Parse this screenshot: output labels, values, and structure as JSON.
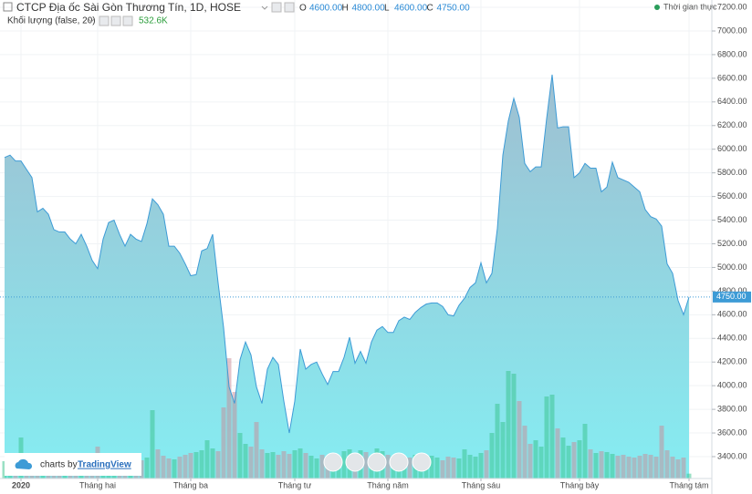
{
  "chart_data": {
    "type": "area",
    "title": "CTCP Địa ốc Sài Gòn Thương Tín, 1D, HOSE",
    "ohlc": [
      {
        "key": "O",
        "value": 4600,
        "label": "4600.00"
      },
      {
        "key": "H",
        "value": 4800,
        "label": "4800.00"
      },
      {
        "key": "L",
        "value": 4600,
        "label": "4600.00"
      },
      {
        "key": "C",
        "value": 4750,
        "label": "4750.00"
      }
    ],
    "realtime": "Thời gian thực",
    "categories": [
      null,
      null,
      null,
      "2020",
      null,
      null,
      null,
      null,
      null,
      null,
      null,
      null,
      null,
      null,
      null,
      null,
      null,
      "Tháng hai",
      null,
      null,
      null,
      null,
      null,
      null,
      null,
      null,
      null,
      null,
      null,
      null,
      null,
      null,
      null,
      null,
      "Tháng ba",
      null,
      null,
      null,
      null,
      null,
      null,
      null,
      null,
      null,
      null,
      null,
      null,
      null,
      null,
      null,
      null,
      null,
      null,
      "Tháng tư",
      null,
      null,
      null,
      null,
      null,
      null,
      null,
      null,
      null,
      null,
      null,
      null,
      null,
      null,
      null,
      null,
      "Tháng năm",
      null,
      null,
      null,
      null,
      null,
      null,
      null,
      null,
      null,
      null,
      null,
      null,
      null,
      null,
      null,
      null,
      "Tháng sáu",
      null,
      null,
      null,
      null,
      null,
      null,
      null,
      null,
      null,
      null,
      null,
      null,
      null,
      null,
      null,
      null,
      null,
      "Tháng bảy",
      null,
      null,
      null,
      null,
      null,
      null,
      null,
      null,
      null,
      null,
      null,
      null,
      null,
      null,
      null,
      null,
      null,
      null,
      null,
      "Tháng tám"
    ],
    "values": [
      5930,
      5950,
      5900,
      5900,
      5830,
      5760,
      5470,
      5500,
      5450,
      5320,
      5300,
      5300,
      5240,
      5200,
      5280,
      5180,
      5060,
      4990,
      5240,
      5380,
      5400,
      5280,
      5180,
      5280,
      5240,
      5220,
      5370,
      5580,
      5530,
      5450,
      5180,
      5180,
      5120,
      5030,
      4930,
      4940,
      5140,
      5160,
      5280,
      4870,
      4490,
      3990,
      3850,
      4220,
      4370,
      4260,
      3990,
      3850,
      4140,
      4240,
      4180,
      3870,
      3600,
      3870,
      4310,
      4140,
      4180,
      4200,
      4100,
      4010,
      4120,
      4120,
      4240,
      4410,
      4190,
      4290,
      4190,
      4370,
      4470,
      4500,
      4450,
      4450,
      4550,
      4580,
      4560,
      4620,
      4660,
      4690,
      4700,
      4700,
      4670,
      4600,
      4590,
      4680,
      4740,
      4830,
      4870,
      5040,
      4870,
      4950,
      5330,
      5950,
      6240,
      6430,
      6270,
      5880,
      5810,
      5850,
      5850,
      6260,
      6630,
      6180,
      6190,
      6190,
      5760,
      5800,
      5880,
      5840,
      5840,
      5640,
      5680,
      5890,
      5760,
      5740,
      5720,
      5680,
      5640,
      5490,
      5430,
      5410,
      5350,
      5030,
      4950,
      4720,
      4600,
      4750
    ],
    "color": "#3d9bd6",
    "fill_colors": [
      "#9fbfd1",
      "#85edf2"
    ],
    "ylim": [
      3215,
      7262
    ],
    "yticks": [
      {
        "value": 3400,
        "label": "3400.00"
      },
      {
        "value": 3600,
        "label": "3600.00"
      },
      {
        "value": 3800,
        "label": "3800.00"
      },
      {
        "value": 4000,
        "label": "4000.00"
      },
      {
        "value": 4200,
        "label": "4200.00"
      },
      {
        "value": 4400,
        "label": "4400.00"
      },
      {
        "value": 4600,
        "label": "4600.00"
      },
      {
        "value": 4800,
        "label": "4800.00"
      },
      {
        "value": 5000,
        "label": "5000.00"
      },
      {
        "value": 5200,
        "label": "5200.00"
      },
      {
        "value": 5400,
        "label": "5400.00"
      },
      {
        "value": 5600,
        "label": "5600.00"
      },
      {
        "value": 5800,
        "label": "5800.00"
      },
      {
        "value": 6000,
        "label": "6000.00"
      },
      {
        "value": 6200,
        "label": "6200.00"
      },
      {
        "value": 6400,
        "label": "6400.00"
      },
      {
        "value": 6600,
        "label": "6600.00"
      },
      {
        "value": 6800,
        "label": "6800.00"
      },
      {
        "value": 7000,
        "label": "7000.00"
      },
      {
        "value": 7200,
        "label": "7200.00"
      }
    ],
    "grid": true,
    "volume": {
      "name": "Khối lượng (false, 20)",
      "values": [
        1900,
        2100,
        2000,
        4500,
        2200,
        2000,
        1800,
        1600,
        2300,
        2000,
        1700,
        1900,
        2100,
        1800,
        2000,
        2200,
        2600,
        3500,
        2400,
        2100,
        1900,
        2000,
        2600,
        2100,
        1800,
        2000,
        2300,
        7500,
        3200,
        2500,
        2200,
        2100,
        2400,
        2600,
        2800,
        2900,
        3100,
        4200,
        3300,
        3000,
        7800,
        13200,
        9500,
        5000,
        3800,
        3500,
        6200,
        3200,
        2800,
        2900,
        2600,
        3000,
        2700,
        3100,
        3300,
        2800,
        2500,
        2200,
        2600,
        2300,
        2800,
        2500,
        3000,
        3200,
        2700,
        3100,
        2900,
        2400,
        3300,
        3000,
        2600,
        2500,
        2700,
        2400,
        2300,
        2600,
        2200,
        2100,
        2500,
        2300,
        2000,
        2400,
        2300,
        2200,
        3200,
        2600,
        2400,
        2800,
        3100,
        5000,
        8200,
        6200,
        11800,
        11500,
        8500,
        5800,
        3800,
        4200,
        3500,
        9000,
        9200,
        5500,
        4500,
        3600,
        4000,
        4200,
        6000,
        3200,
        2800,
        3000,
        2900,
        2700,
        2500,
        2600,
        2400,
        2300,
        2500,
        2700,
        2600,
        2400,
        5800,
        3100,
        2400,
        2100,
        2300,
        532.6
      ],
      "value_labels": [
        null,
        null,
        null,
        null,
        null,
        null,
        null,
        null,
        null,
        null,
        null,
        null,
        null,
        null,
        null,
        null,
        null,
        null,
        null,
        null,
        null,
        null,
        null,
        null,
        null,
        null,
        null,
        null,
        null,
        null,
        null,
        null,
        null,
        null,
        null,
        null,
        null,
        null,
        null,
        null,
        null,
        null,
        null,
        null,
        null,
        null,
        null,
        null,
        null,
        null,
        null,
        null,
        null,
        null,
        null,
        null,
        null,
        null,
        null,
        null,
        null,
        null,
        null,
        null,
        null,
        null,
        null,
        null,
        null,
        null,
        null,
        null,
        null,
        null,
        null,
        null,
        null,
        null,
        null,
        null,
        null,
        null,
        null,
        null,
        null,
        null,
        null,
        null,
        null,
        null,
        null,
        null,
        null,
        null,
        null,
        null,
        null,
        null,
        null,
        null,
        null,
        null,
        null,
        null,
        null,
        null,
        null,
        null,
        null,
        null,
        null,
        null,
        null,
        null,
        null,
        null,
        null,
        null,
        null,
        null,
        null,
        null,
        null,
        null,
        null,
        "532.6K"
      ],
      "up_color": "#36c28a",
      "down_color": "#c98a96",
      "ylim": [
        0,
        52500
      ]
    },
    "branding": {
      "prefix": "charts by",
      "name": "TradingView"
    }
  }
}
